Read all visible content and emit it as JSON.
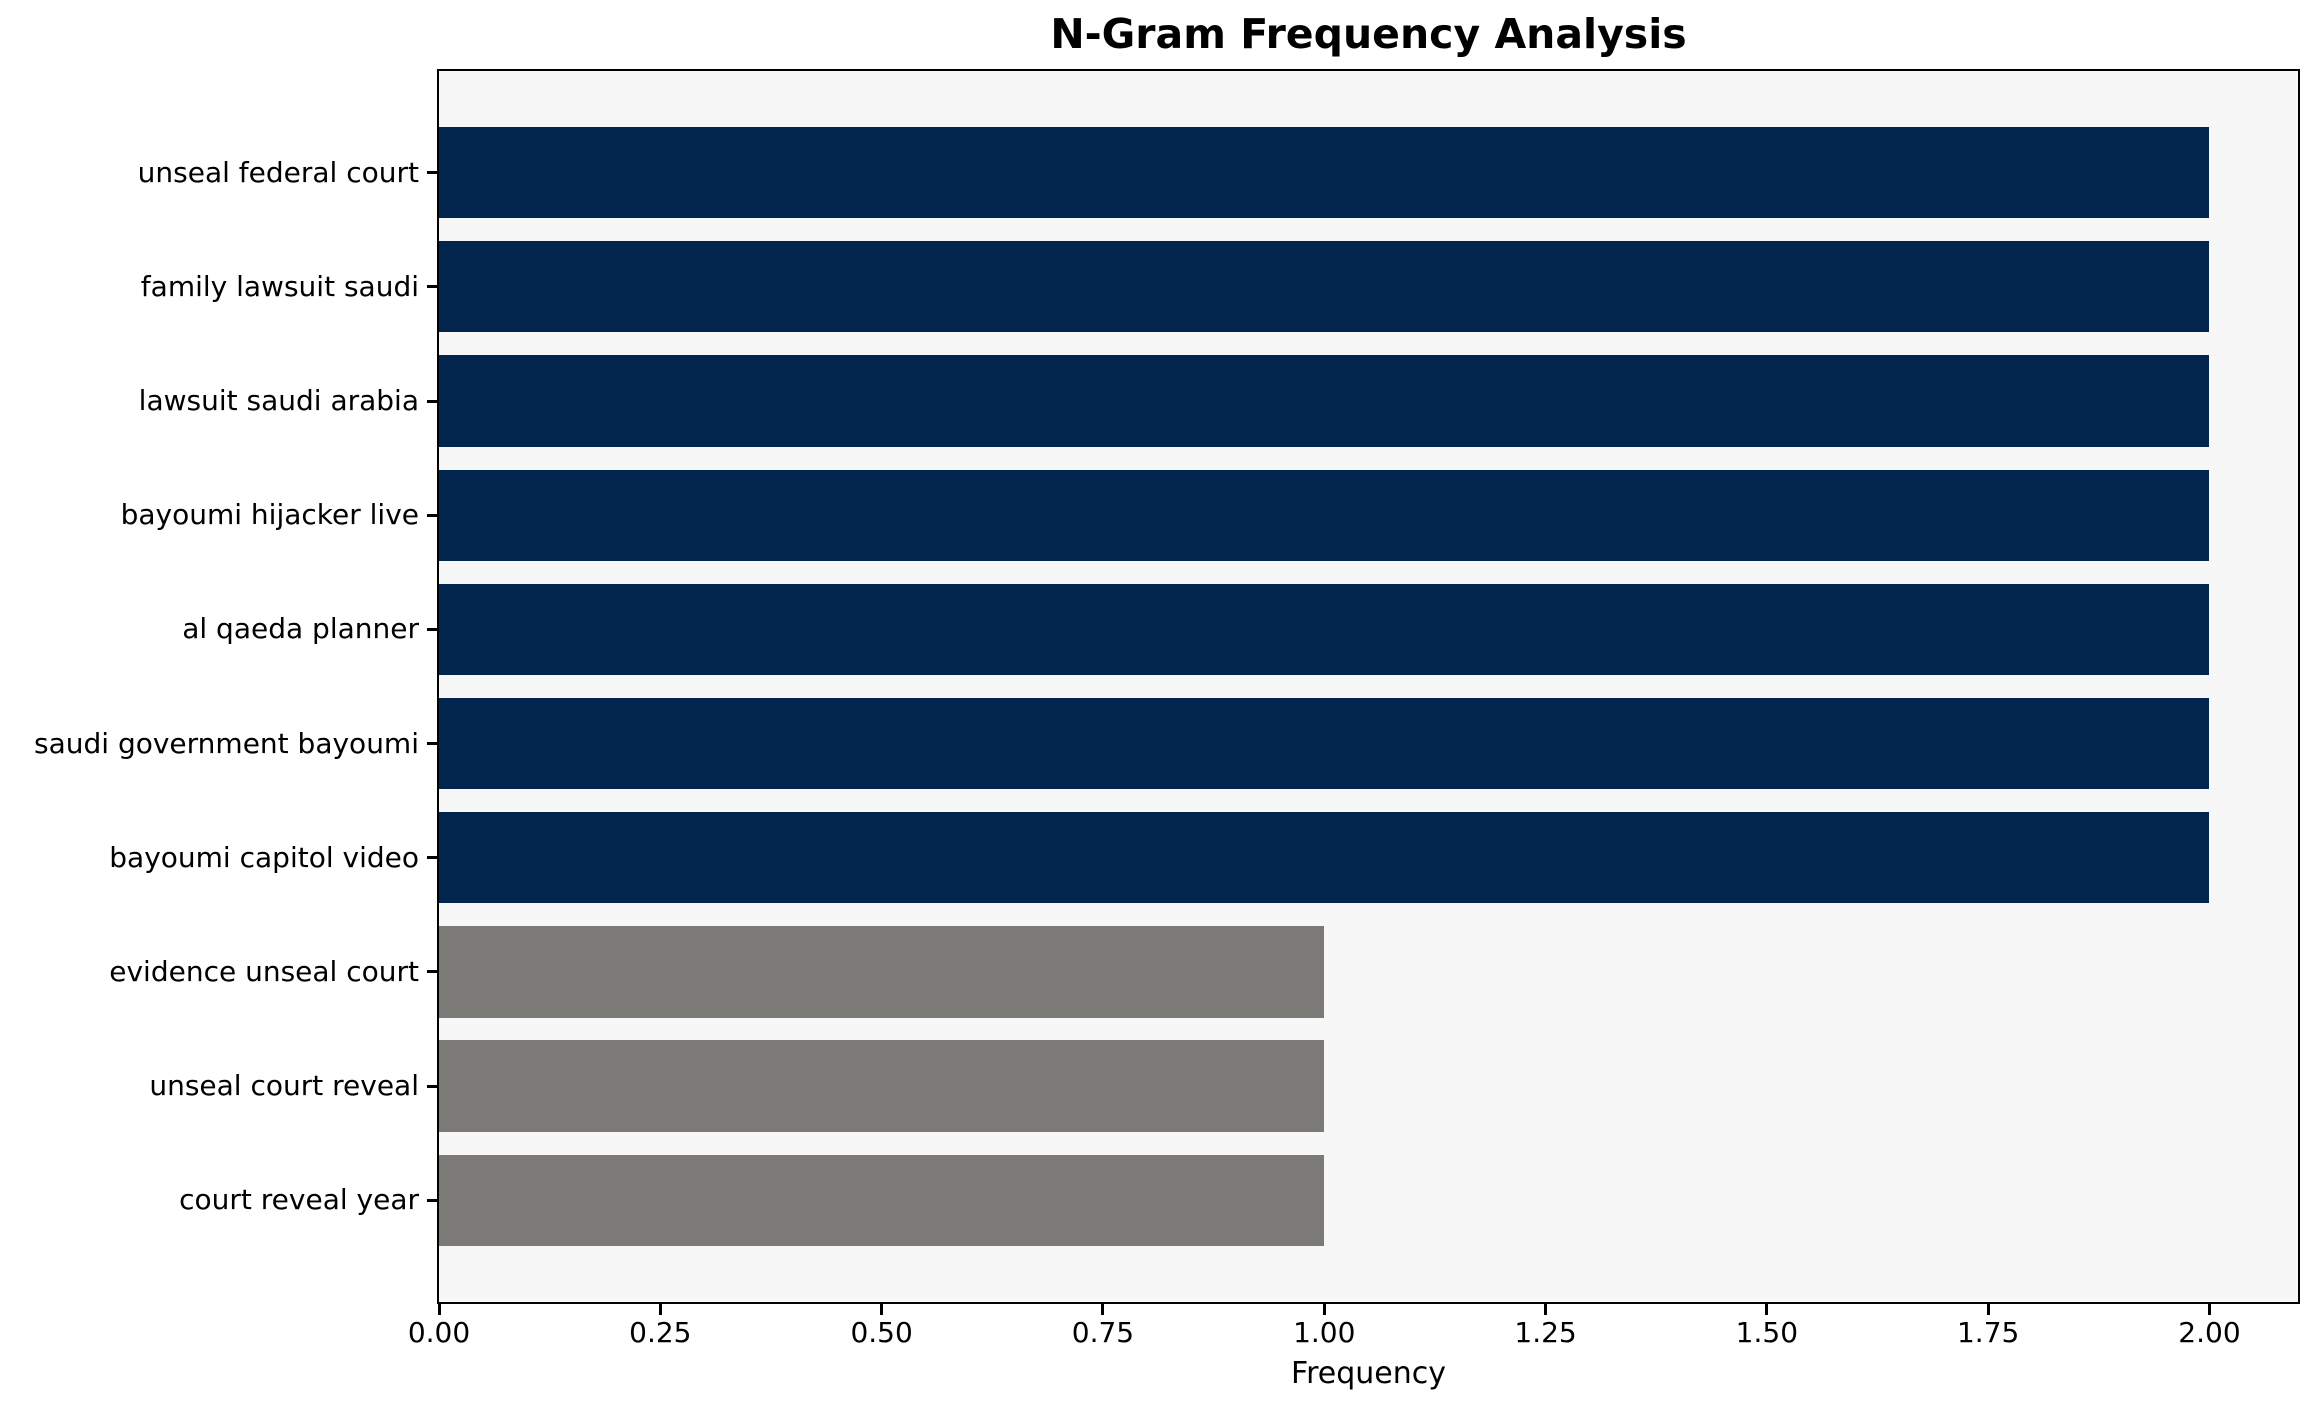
{
  "chart_data": {
    "type": "bar",
    "orientation": "horizontal",
    "title": "N-Gram Frequency Analysis",
    "xlabel": "Frequency",
    "ylabel": "",
    "categories": [
      "unseal federal court",
      "family lawsuit saudi",
      "lawsuit saudi arabia",
      "bayoumi hijacker live",
      "al qaeda planner",
      "saudi government bayoumi",
      "bayoumi capitol video",
      "evidence unseal court",
      "unseal court reveal",
      "court reveal year"
    ],
    "values": [
      2,
      2,
      2,
      2,
      2,
      2,
      2,
      1,
      1,
      1
    ],
    "bar_colors": [
      "#02254e",
      "#02254e",
      "#02254e",
      "#02254e",
      "#02254e",
      "#02254e",
      "#02254e",
      "#7b7a77",
      "#7b7a77",
      "#7b7a77"
    ],
    "xlim": [
      0,
      2.1
    ],
    "xticks": [
      0,
      0.25,
      0.5,
      0.75,
      1.0,
      1.25,
      1.5,
      1.75,
      2.0
    ],
    "xtick_labels": [
      "0.00",
      "0.25",
      "0.50",
      "0.75",
      "1.00",
      "1.25",
      "1.50",
      "1.75",
      "2.00"
    ],
    "grid": false,
    "legend": null,
    "bar_height_fraction": 0.8,
    "plot_background": "#f7f7f7",
    "figure_background": "#ffffff",
    "spine_color": "#000000",
    "text_color": "#000000"
  }
}
